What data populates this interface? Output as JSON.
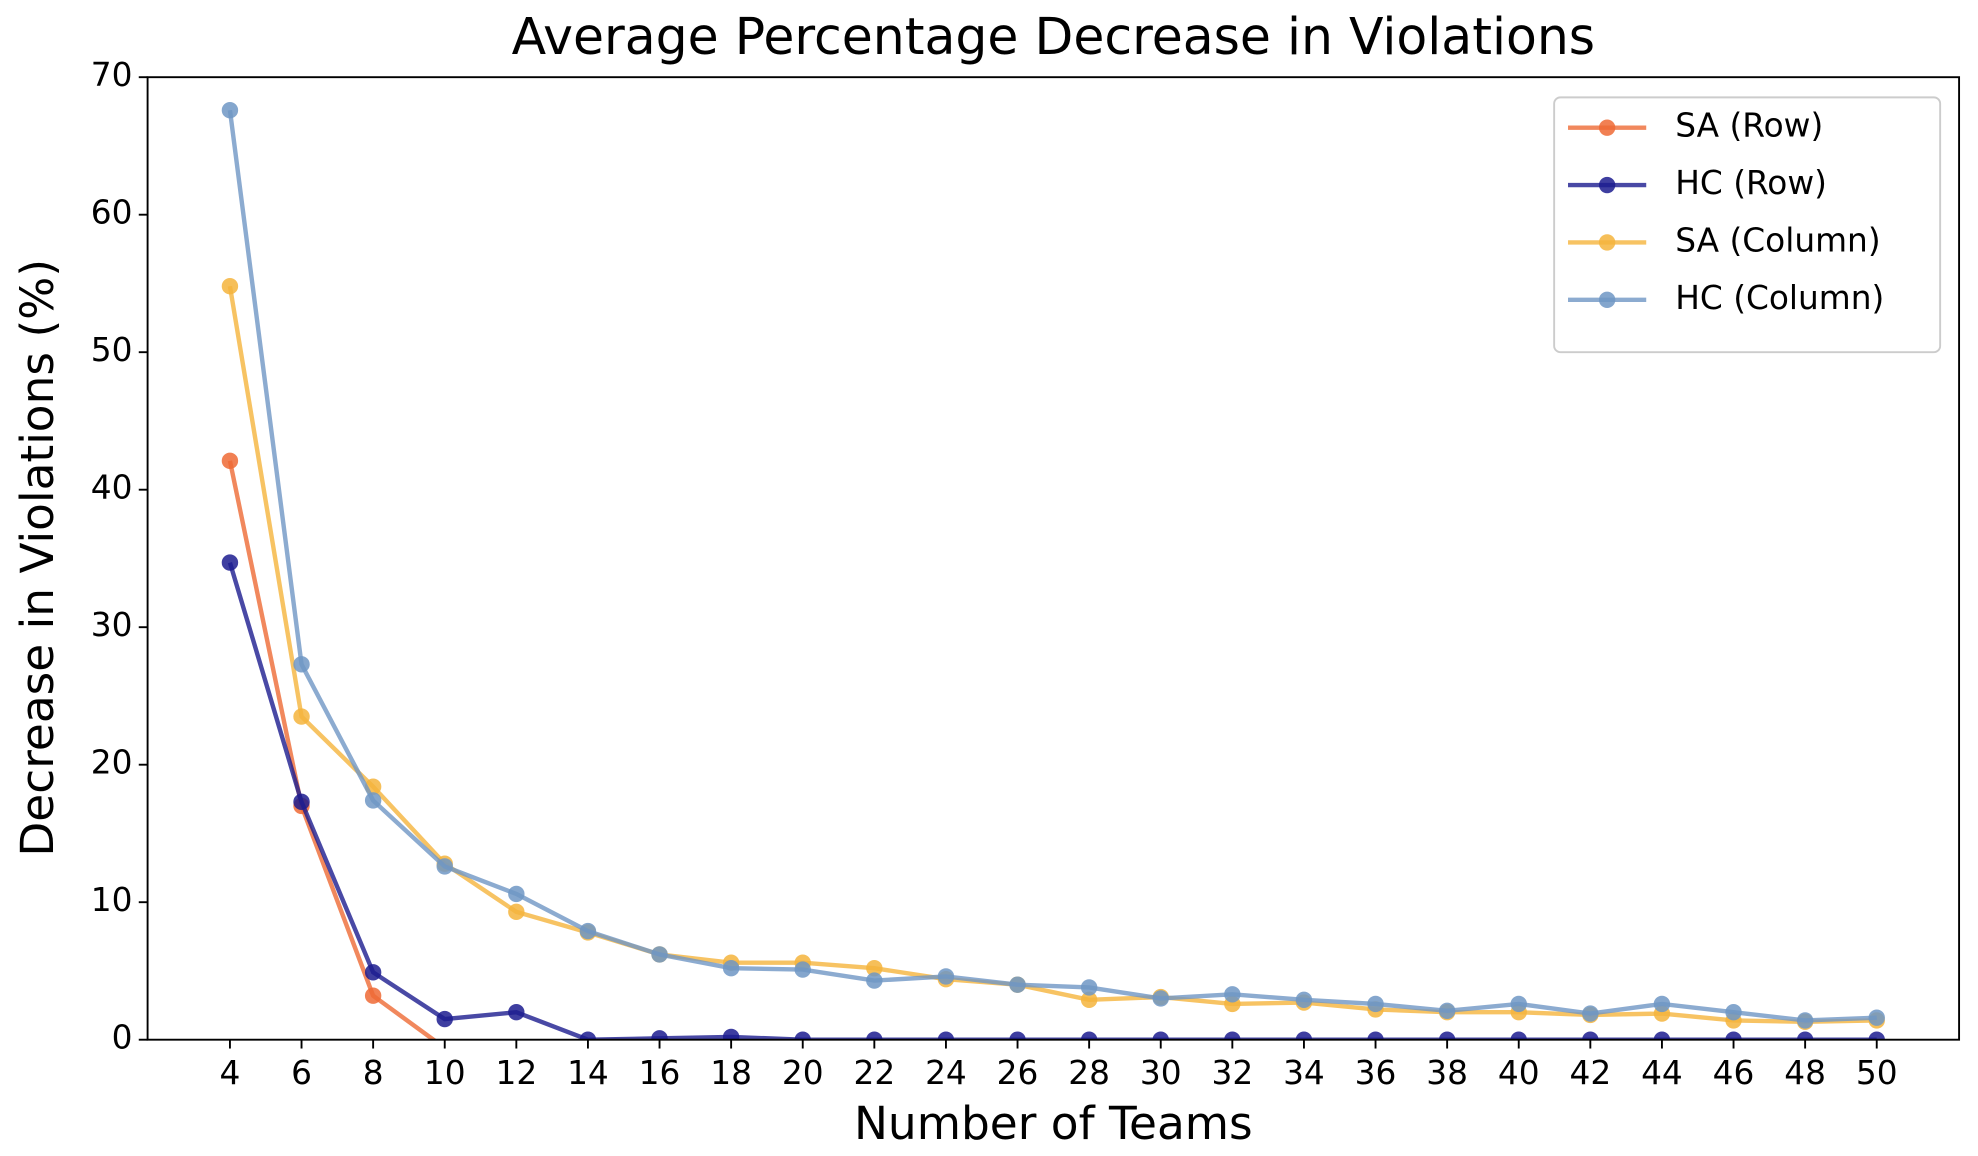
{
  "chart_data": {
    "type": "line",
    "title": "Average Percentage Decrease in Violations",
    "x_label": "Number of Teams",
    "y_label": "Decrease in Violations (%)",
    "x": [
      4,
      6,
      8,
      10,
      12,
      14,
      16,
      18,
      20,
      22,
      24,
      26,
      28,
      30,
      32,
      34,
      36,
      38,
      40,
      42,
      44,
      46,
      48,
      50
    ],
    "series": [
      {
        "name": "SA (Row)",
        "color": "#ee6a35",
        "values": [
          42.1,
          17.0,
          3.2,
          -0.6,
          null,
          null,
          null,
          null,
          null,
          null,
          null,
          null,
          null,
          null,
          null,
          null,
          null,
          null,
          null,
          null,
          null,
          null,
          null,
          null
        ]
      },
      {
        "name": "HC (Row)",
        "color": "#1c1c8f",
        "values": [
          34.7,
          17.3,
          4.9,
          1.5,
          2.0,
          0.0,
          0.1,
          0.2,
          0.0,
          0.0,
          0.0,
          0.0,
          0.0,
          0.0,
          0.0,
          0.0,
          0.0,
          0.0,
          0.0,
          0.0,
          0.0,
          0.0,
          0.0,
          0.0
        ]
      },
      {
        "name": "SA (Column)",
        "color": "#f5b43c",
        "values": [
          54.8,
          23.5,
          18.4,
          12.8,
          9.3,
          7.8,
          6.2,
          5.6,
          5.6,
          5.2,
          4.4,
          4.0,
          2.9,
          3.1,
          2.6,
          2.7,
          2.2,
          2.0,
          2.0,
          1.8,
          1.9,
          1.4,
          1.3,
          1.4
        ]
      },
      {
        "name": "HC (Column)",
        "color": "#6f96c4",
        "values": [
          67.6,
          27.3,
          17.4,
          12.6,
          10.6,
          7.9,
          6.2,
          5.2,
          5.1,
          4.3,
          4.6,
          4.0,
          3.8,
          3.0,
          3.3,
          2.9,
          2.6,
          2.1,
          2.6,
          1.9,
          2.6,
          2.0,
          1.4,
          1.6
        ]
      }
    ],
    "xlim": [
      1.7,
      52.3
    ],
    "xticks": [
      4,
      6,
      8,
      10,
      12,
      14,
      16,
      18,
      20,
      22,
      24,
      26,
      28,
      30,
      32,
      34,
      36,
      38,
      40,
      42,
      44,
      46,
      48,
      50
    ],
    "ylim": [
      0,
      70
    ],
    "yticks": [
      0,
      10,
      20,
      30,
      40,
      50,
      60,
      70
    ],
    "legend": "upper right",
    "grid": false
  }
}
